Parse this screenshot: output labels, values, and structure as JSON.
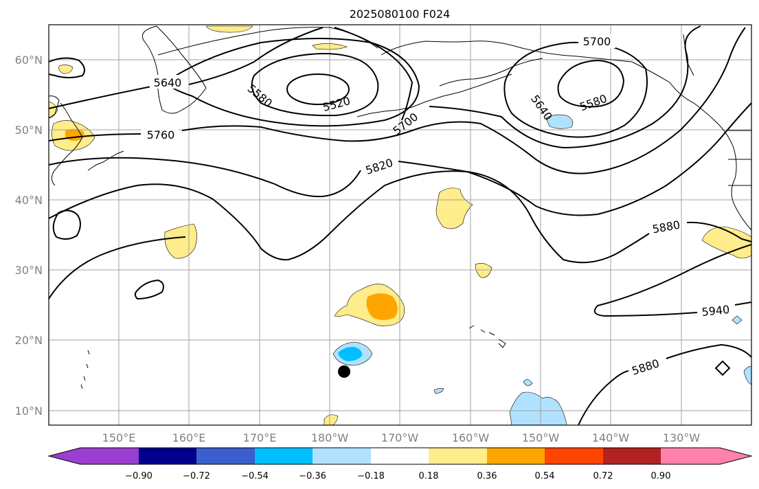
{
  "title": "2025080100 F024",
  "lat_labels": [
    "60°N",
    "50°N",
    "40°N",
    "30°N",
    "20°N",
    "10°N"
  ],
  "lon_labels": [
    "150°E",
    "160°E",
    "170°E",
    "180°W",
    "170°W",
    "160°W",
    "150°W",
    "140°W",
    "130°W"
  ],
  "colorbar": {
    "ticks": [
      "−0.90",
      "−0.72",
      "−0.54",
      "−0.36",
      "−0.18",
      "0.18",
      "0.36",
      "0.54",
      "0.72",
      "0.90"
    ],
    "colors": [
      "#9b3fd1",
      "#00008b",
      "#3a5fcd",
      "#00bfff",
      "#b0e2ff",
      "#ffffff",
      "#ffec8b",
      "#ffa500",
      "#ff4500",
      "#b22222",
      "#ff82ab"
    ]
  },
  "contour_labels": {
    "c5640a": "5640",
    "c5580a": "5580",
    "c5520": "5520",
    "c5700a": "5700",
    "c5760": "5760",
    "c5820": "5820",
    "c5700b": "5700",
    "c5640b": "5640",
    "c5580b": "5580",
    "c5880a": "5880",
    "c5940": "5940",
    "c5880b": "5880"
  },
  "shading_colors": {
    "light_yellow": "#ffec8b",
    "orange": "#ffa500",
    "light_blue": "#b0e2ff",
    "cyan": "#00bfff"
  },
  "marker": "typhoon-center-dot"
}
